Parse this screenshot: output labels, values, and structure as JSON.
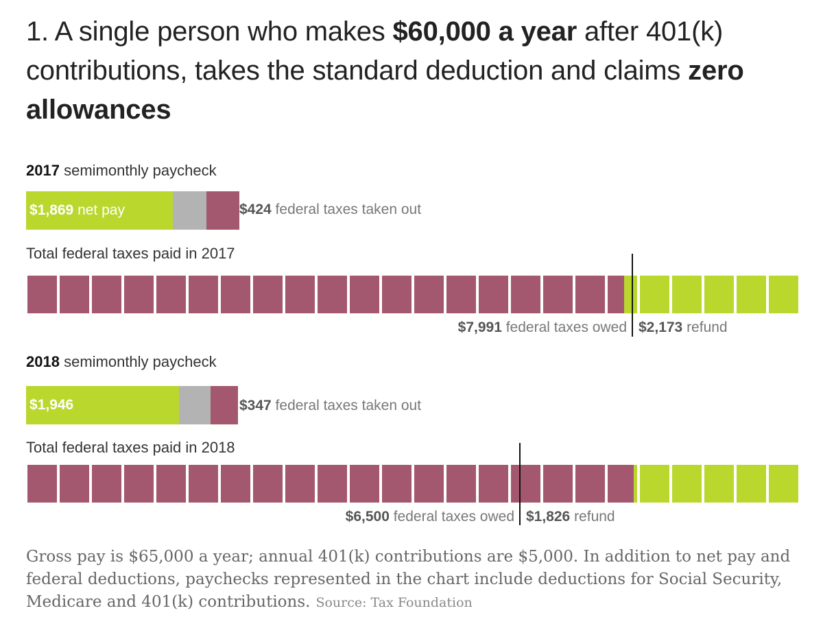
{
  "title": {
    "t1": "1. A single person who makes ",
    "b1": "$60,000 a year",
    "t2": " after 401(k) contributions, takes the standard deduction and claims ",
    "b2": "zero allowances"
  },
  "colors": {
    "owed": "#a4586f",
    "refund": "#bad72e",
    "other": "#b3b3b3"
  },
  "chart_data": {
    "type": "bar",
    "title": "1. A single person who makes $60,000 a year after 401(k) contributions, takes the standard deduction and claims zero allowances",
    "square_unit_dollars": 424,
    "years": [
      {
        "year": "2017",
        "paycheck_label": "semimonthly paycheck",
        "net_pay": 1869,
        "net_pay_display": "$1,869",
        "net_pay_label": " net pay",
        "other_deductions": 424,
        "federal_taxes_taken_out": 424,
        "taxes_out_display": "$424",
        "taxes_out_label": " federal taxes taken out",
        "total_label": "Total federal taxes paid in 2017",
        "taxes_owed": 7991,
        "owed_display": "$7,991",
        "owed_label": " federal taxes owed",
        "refund": 2173,
        "refund_display": "$2,173",
        "refund_label": " refund",
        "owed_squares": 18.5,
        "refund_squares": 5
      },
      {
        "year": "2018",
        "paycheck_label": "semimonthly paycheck",
        "net_pay": 1946,
        "net_pay_display": "$1,946",
        "net_pay_label": "",
        "other_deductions": 404,
        "federal_taxes_taken_out": 347,
        "taxes_out_display": "$347",
        "taxes_out_label": " federal taxes taken out",
        "total_label": "Total federal taxes paid in 2018",
        "taxes_owed": 6500,
        "owed_display": "$6,500",
        "owed_label": " federal taxes owed",
        "refund": 1826,
        "refund_display": "$1,826",
        "refund_label": " refund",
        "owed_squares": 18.8,
        "refund_squares": 5
      }
    ]
  },
  "footnote": {
    "text": "Gross pay is $65,000 a year; annual 401(k) contributions are $5,000. In addition to net pay and federal deductions, paychecks represented in the chart include deductions for Social Security, Medicare and 401(k) contributions.",
    "source": "Source: Tax Foundation"
  }
}
